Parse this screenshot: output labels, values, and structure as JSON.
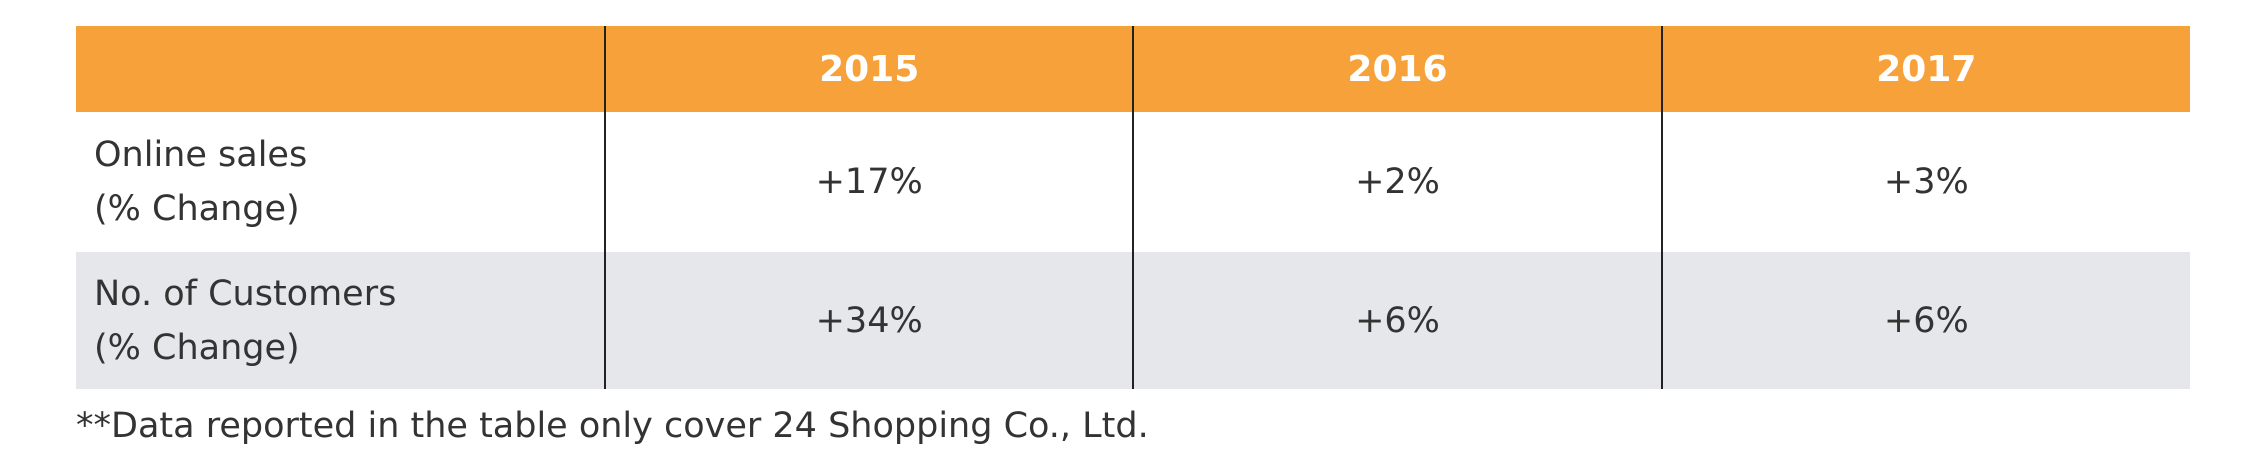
{
  "table": {
    "columns": [
      "2015",
      "2016",
      "2017"
    ],
    "rows": [
      {
        "label": [
          "Online sales",
          "(% Change)"
        ],
        "cells": [
          "+17%",
          "+2%",
          "+3%"
        ]
      },
      {
        "label": [
          "No. of Customers",
          "(% Change)"
        ],
        "cells": [
          "+34%",
          "+6%",
          "+6%"
        ]
      }
    ]
  },
  "footnote": "**Data reported in the table only cover 24 Shopping Co., Ltd."
}
